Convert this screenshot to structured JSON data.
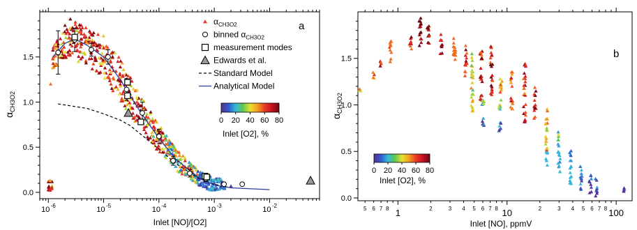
{
  "chart_data": [
    {
      "panel_label": "a",
      "type": "scatter",
      "xscale": "log",
      "xlabel": "Inlet [NO]/[O2]",
      "ylabel_main": "α",
      "ylabel_sub": "CH3O2",
      "xlim": [
        7e-07,
        0.08
      ],
      "ylim": [
        -0.07,
        2.0
      ],
      "x_tick_labels": [
        {
          "x": 1e-06,
          "label": "10"
        },
        {
          "x": 1e-05,
          "label": "10"
        },
        {
          "x": 0.0001,
          "label": "10"
        },
        {
          "x": 0.001,
          "label": "10"
        },
        {
          "x": 0.01,
          "label": "10"
        }
      ],
      "x_tick_exponents": [
        "-6",
        "-5",
        "-4",
        "-3",
        "-2"
      ],
      "y_ticks": [
        0.0,
        0.5,
        1.0,
        1.5
      ],
      "y_tick_labels": [
        "0.0",
        "0.5",
        "1.0",
        "1.5"
      ],
      "legend": {
        "placement": "top-right",
        "entries": [
          {
            "marker": "triangle-red",
            "label_main": "α",
            "label_sub": "CH3O2"
          },
          {
            "marker": "circle-open",
            "label_main": "binned α",
            "label_sub": "CH3O2"
          },
          {
            "marker": "square-open",
            "label_main": "measurement modes",
            "label_sub": ""
          },
          {
            "marker": "triangle-gray",
            "label_main": "Edwards et al.",
            "label_sub": ""
          },
          {
            "marker": "dashed-line",
            "label_main": "Standard Model",
            "label_sub": ""
          },
          {
            "marker": "blue-line",
            "label_main": "Analytical Model",
            "label_sub": ""
          }
        ]
      },
      "colorbar": {
        "ticks": [
          "0",
          "20",
          "40",
          "60",
          "80"
        ],
        "range": [
          0,
          80
        ],
        "label": "Inlet [O2], %",
        "colors": [
          "#5b2f8f",
          "#2d5bd0",
          "#36b8d8",
          "#5cc850",
          "#e6e02c",
          "#f2a020",
          "#e83a25",
          "#c81020",
          "#6a0a10"
        ]
      },
      "standard_model": {
        "x": [
          1.5e-06,
          5e-06,
          1e-05,
          2e-05,
          3e-05,
          5e-05,
          0.0001,
          0.0002,
          0.0005,
          0.001,
          0.002
        ],
        "y": [
          0.98,
          0.93,
          0.87,
          0.8,
          0.74,
          0.63,
          0.48,
          0.32,
          0.16,
          0.09,
          0.05
        ]
      },
      "analytical_model": {
        "x": [
          1.2e-06,
          2e-06,
          3e-06,
          5e-06,
          1e-05,
          2e-05,
          3e-05,
          5e-05,
          0.0001,
          0.0002,
          0.0005,
          0.001,
          0.002,
          0.01
        ],
        "y": [
          1.5,
          1.65,
          1.7,
          1.63,
          1.5,
          1.25,
          1.07,
          0.86,
          0.6,
          0.37,
          0.17,
          0.08,
          0.05,
          0.03
        ]
      },
      "binned": [
        {
          "x": 1.5e-06,
          "y": 1.55,
          "err": 0.24
        },
        {
          "x": 3e-06,
          "y": 1.69,
          "err": 0.13
        },
        {
          "x": 6e-06,
          "y": 1.58,
          "err": 0.07
        },
        {
          "x": 1.2e-05,
          "y": 1.5,
          "err": 0.08
        },
        {
          "x": 2.6e-05,
          "y": 1.14,
          "err": 0.12
        },
        {
          "x": 5e-05,
          "y": 0.88,
          "err": 0.12
        },
        {
          "x": 0.0001,
          "y": 0.62,
          "err": 0.08
        },
        {
          "x": 0.00018,
          "y": 0.35,
          "err": 0.05
        },
        {
          "x": 0.00036,
          "y": 0.21,
          "err": 0.04
        },
        {
          "x": 0.0007,
          "y": 0.15,
          "err": 0.03
        },
        {
          "x": 0.0015,
          "y": 0.09,
          "err": 0.02
        },
        {
          "x": 0.0032,
          "y": 0.09,
          "err": 0.0
        }
      ],
      "measurement_modes": [
        {
          "x": 3e-06,
          "y": 1.72
        },
        {
          "x": 2.7e-05,
          "y": 1.22
        },
        {
          "x": 2.7e-05,
          "y": 1.07
        },
        {
          "x": 4.7e-05,
          "y": 0.78
        },
        {
          "x": 0.00068,
          "y": 0.18
        },
        {
          "x": 0.00073,
          "y": 0.17
        }
      ],
      "edwards": [
        {
          "x": 2.8e-05,
          "y": 0.88
        },
        {
          "x": 0.055,
          "y": 0.13
        }
      ],
      "scatter_description_points": [
        {
          "x": 1.1e-06,
          "y": 1.2,
          "o2": 55
        },
        {
          "x": 1.2e-06,
          "y": 1.38,
          "o2": 50
        },
        {
          "x": 2e-06,
          "y": 1.85,
          "o2": 78
        },
        {
          "x": 2.5e-06,
          "y": 1.92,
          "o2": 80
        },
        {
          "x": 3.5e-06,
          "y": 1.45,
          "o2": 38
        },
        {
          "x": 4e-06,
          "y": 1.55,
          "o2": 36
        },
        {
          "x": 6e-06,
          "y": 1.75,
          "o2": 70
        },
        {
          "x": 1e-05,
          "y": 1.6,
          "o2": 65
        },
        {
          "x": 1.5e-05,
          "y": 1.35,
          "o2": 60
        },
        {
          "x": 2e-05,
          "y": 1.2,
          "o2": 70
        },
        {
          "x": 4e-05,
          "y": 1.0,
          "o2": 60
        },
        {
          "x": 6e-05,
          "y": 0.8,
          "o2": 30
        },
        {
          "x": 8e-05,
          "y": 0.62,
          "o2": 25
        },
        {
          "x": 0.00015,
          "y": 0.45,
          "o2": 35
        },
        {
          "x": 0.00025,
          "y": 0.25,
          "o2": 12
        },
        {
          "x": 0.0005,
          "y": 0.15,
          "o2": 8
        },
        {
          "x": 0.001,
          "y": 0.1,
          "o2": 5
        },
        {
          "x": 0.002,
          "y": 0.07,
          "o2": 3
        }
      ]
    },
    {
      "panel_label": "b",
      "type": "scatter",
      "xscale": "log",
      "xlabel": "Inlet [NO], ppmV",
      "ylabel_main": "α",
      "ylabel_sub": "CH3O2",
      "xlim": [
        0.43,
        140
      ],
      "ylim": [
        -0.03,
        2.0
      ],
      "x_major_labels": [
        {
          "x": 1,
          "label": "1"
        },
        {
          "x": 10,
          "label": "10"
        },
        {
          "x": 100,
          "label": "100"
        }
      ],
      "x_minor_labels": [
        {
          "x": 0.5,
          "label": "5"
        },
        {
          "x": 0.6,
          "label": "6"
        },
        {
          "x": 0.7,
          "label": "7"
        },
        {
          "x": 0.8,
          "label": "8"
        },
        {
          "x": 2,
          "label": "2"
        },
        {
          "x": 3,
          "label": "3"
        },
        {
          "x": 4,
          "label": "4"
        },
        {
          "x": 5,
          "label": "5"
        },
        {
          "x": 6,
          "label": "6"
        },
        {
          "x": 7,
          "label": "7"
        },
        {
          "x": 8,
          "label": "8"
        },
        {
          "x": 20,
          "label": "2"
        },
        {
          "x": 30,
          "label": "3"
        },
        {
          "x": 40,
          "label": "4"
        },
        {
          "x": 50,
          "label": "5"
        },
        {
          "x": 60,
          "label": "6"
        },
        {
          "x": 70,
          "label": "7"
        },
        {
          "x": 80,
          "label": "8"
        }
      ],
      "y_ticks": [
        0.0,
        0.5,
        1.0,
        1.5
      ],
      "y_tick_labels": [
        "0.0",
        "0.5",
        "1.0",
        "1.5"
      ],
      "colorbar": {
        "placement": "lower-left",
        "ticks": [
          "0",
          "20",
          "40",
          "60",
          "80"
        ],
        "range": [
          0,
          80
        ],
        "label": "Inlet [O2], %"
      },
      "columns": [
        {
          "x": 0.45,
          "ylo": 1.15,
          "yhi": 1.2,
          "o2": 50
        },
        {
          "x": 0.6,
          "ylo": 1.28,
          "yhi": 1.35,
          "o2": 50
        },
        {
          "x": 0.7,
          "ylo": 1.4,
          "yhi": 1.48,
          "o2": 65
        },
        {
          "x": 0.85,
          "ylo": 1.45,
          "yhi": 1.7,
          "o2": 48
        },
        {
          "x": 1.3,
          "ylo": 1.58,
          "yhi": 1.75,
          "o2": 65
        },
        {
          "x": 1.6,
          "ylo": 1.6,
          "yhi": 1.95,
          "o2": 78
        },
        {
          "x": 1.9,
          "ylo": 1.6,
          "yhi": 1.85,
          "o2": 75
        },
        {
          "x": 2.5,
          "ylo": 1.55,
          "yhi": 1.8,
          "o2": 70
        },
        {
          "x": 3.3,
          "ylo": 1.4,
          "yhi": 1.75,
          "o2": 45
        },
        {
          "x": 4.2,
          "ylo": 1.3,
          "yhi": 1.65,
          "o2": 65
        },
        {
          "x": 4.8,
          "ylo": 0.9,
          "yhi": 1.55,
          "o2": 40
        },
        {
          "x": 5.8,
          "ylo": 1.05,
          "yhi": 1.6,
          "o2": 65
        },
        {
          "x": 7.2,
          "ylo": 1.1,
          "yhi": 1.65,
          "o2": 70
        },
        {
          "x": 8.8,
          "ylo": 1.05,
          "yhi": 1.35,
          "o2": 45
        },
        {
          "x": 11,
          "ylo": 0.95,
          "yhi": 1.4,
          "o2": 60
        },
        {
          "x": 14.5,
          "ylo": 0.8,
          "yhi": 1.45,
          "o2": 65
        },
        {
          "x": 18,
          "ylo": 0.85,
          "yhi": 1.2,
          "o2": 70
        },
        {
          "x": 23,
          "ylo": 0.35,
          "yhi": 1.0,
          "o2": 45
        },
        {
          "x": 30,
          "ylo": 0.25,
          "yhi": 0.75,
          "o2": 30
        },
        {
          "x": 38,
          "ylo": 0.15,
          "yhi": 0.55,
          "o2": 20
        },
        {
          "x": 48,
          "ylo": 0.08,
          "yhi": 0.35,
          "o2": 10
        },
        {
          "x": 58,
          "ylo": 0.05,
          "yhi": 0.28,
          "o2": 8
        },
        {
          "x": 66,
          "ylo": 0.02,
          "yhi": 0.22,
          "o2": 5
        },
        {
          "x": 120,
          "ylo": 0.05,
          "yhi": 0.12,
          "o2": 5
        }
      ],
      "low_groups": [
        {
          "x": 6.0,
          "ylo": 0.78,
          "yhi": 0.88,
          "o2": 5
        },
        {
          "x": 6.0,
          "ylo": 1.0,
          "yhi": 1.05,
          "o2": 25
        },
        {
          "x": 8.6,
          "ylo": 0.72,
          "yhi": 0.82,
          "o2": 5
        },
        {
          "x": 8.6,
          "ylo": 0.95,
          "yhi": 1.0,
          "o2": 28
        }
      ]
    }
  ]
}
